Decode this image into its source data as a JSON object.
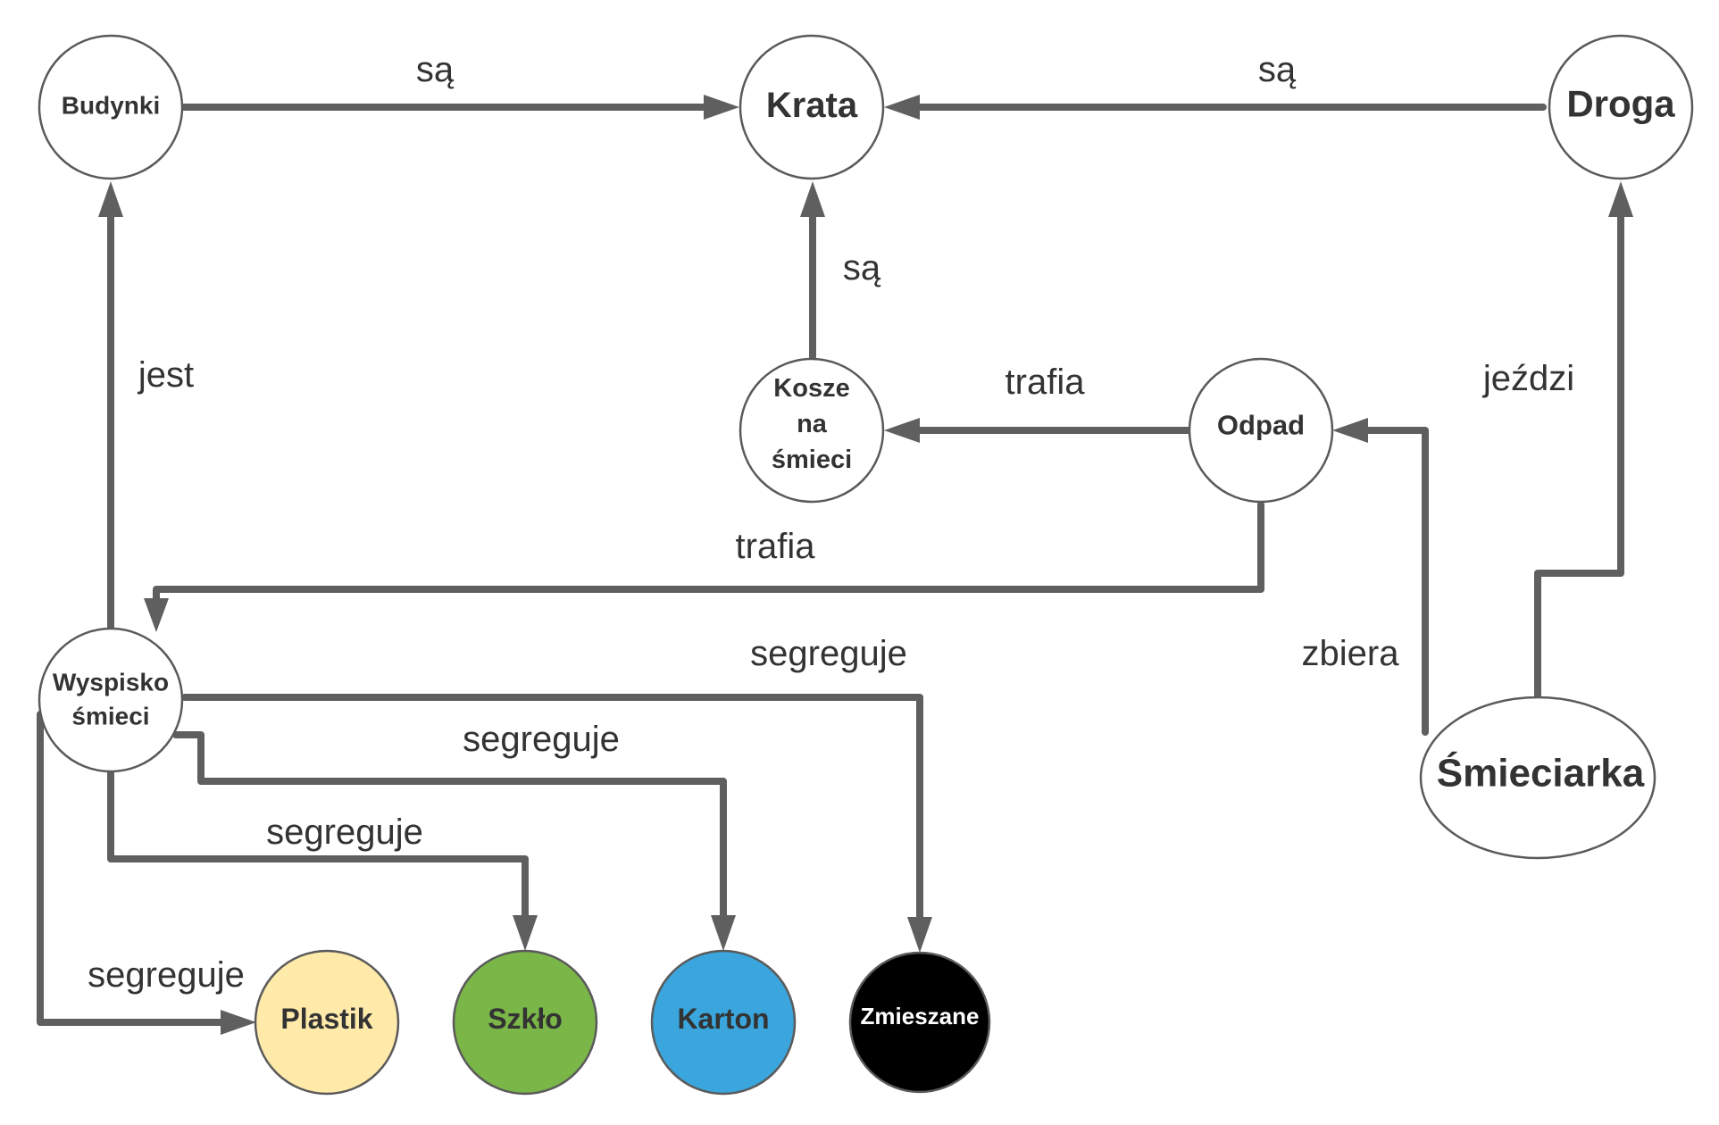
{
  "colors": {
    "edge": "#5f5f5f",
    "node_stroke": "#5a5a5a",
    "node_text": "#333333",
    "white_node": "#ffffff",
    "plastik": "#ffeaaa",
    "szklo": "#7ab648",
    "karton": "#3aa6dd",
    "zmieszane": "#000000"
  },
  "nodes": {
    "budynki": {
      "label": "Budynki",
      "fill": "#ffffff"
    },
    "krata": {
      "label": "Krata",
      "fill": "#ffffff"
    },
    "droga": {
      "label": "Droga",
      "fill": "#ffffff"
    },
    "kosze": {
      "lines": [
        "Kosze",
        "na",
        "śmieci"
      ],
      "fill": "#ffffff"
    },
    "odpad": {
      "label": "Odpad",
      "fill": "#ffffff"
    },
    "wyspisko": {
      "lines": [
        "Wyspisko",
        "śmieci"
      ],
      "fill": "#ffffff"
    },
    "smieciarka": {
      "label": "Śmieciarka",
      "fill": "#ffffff"
    },
    "plastik": {
      "label": "Plastik",
      "fill": "#ffeaaa"
    },
    "szklo": {
      "label": "Szkło",
      "fill": "#7ab648"
    },
    "karton": {
      "label": "Karton",
      "fill": "#3aa6dd"
    },
    "zmieszane": {
      "label": "Zmieszane",
      "fill": "#000000"
    }
  },
  "edges": {
    "budynki_krata": "są",
    "droga_krata": "są",
    "kosze_krata": "są",
    "wyspisko_budynki": "jest",
    "odpad_kosze": "trafia",
    "odpad_wyspisko": "trafia",
    "smieciarka_droga": "jeździ",
    "smieciarka_odpad": "zbiera",
    "wyspisko_zmieszane": "segreguje",
    "wyspisko_karton": "segreguje",
    "wyspisko_szklo": "segreguje",
    "wyspisko_plastik": "segreguje"
  }
}
